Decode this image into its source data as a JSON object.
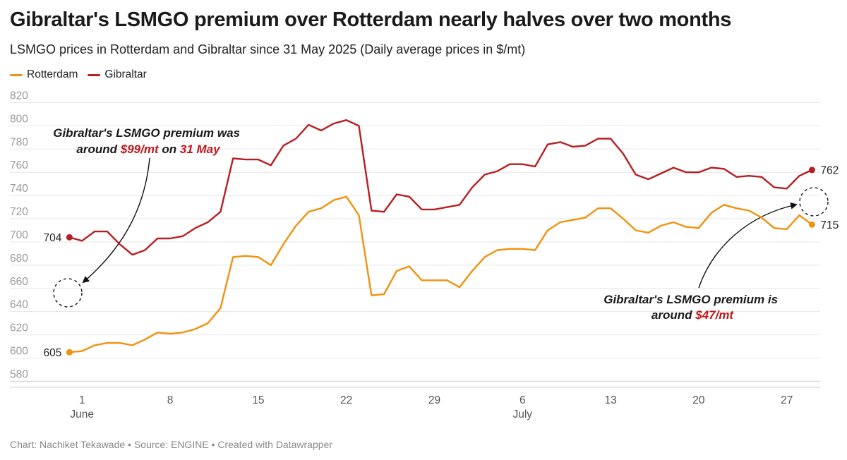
{
  "title": "Gibraltar's LSMGO premium over Rotterdam nearly halves over two months",
  "subtitle": "LSMGO prices in Rotterdam and Gibraltar since 31 May 2025 (Daily average prices in $/mt)",
  "footer": "Chart: Nachiket Tekawade • Source: ENGINE • Created with Datawrapper",
  "legend": [
    {
      "name": "Rotterdam",
      "color": "#f0920f"
    },
    {
      "name": "Gibraltar",
      "color": "#b81d21"
    }
  ],
  "annotations": [
    {
      "lines": [
        [
          {
            "t": "Gibraltar's LSMGO premium was",
            "red": false
          }
        ],
        [
          {
            "t": "around ",
            "red": false
          },
          {
            "t": "$99/mt",
            "red": true
          },
          {
            "t": " on ",
            "red": false
          },
          {
            "t": "31 May",
            "red": true
          }
        ]
      ]
    },
    {
      "lines": [
        [
          {
            "t": "Gibraltar's LSMGO premium is",
            "red": false
          }
        ],
        [
          {
            "t": "around ",
            "red": false
          },
          {
            "t": "$47/mt",
            "red": true
          }
        ]
      ]
    }
  ],
  "chart_data": {
    "type": "line",
    "x_start_date": "2025-05-31",
    "x_ticks": [
      {
        "day": 1,
        "label": "1",
        "sublabel": "June"
      },
      {
        "day": 8,
        "label": "8",
        "sublabel": ""
      },
      {
        "day": 15,
        "label": "15",
        "sublabel": ""
      },
      {
        "day": 22,
        "label": "22",
        "sublabel": ""
      },
      {
        "day": 29,
        "label": "29",
        "sublabel": ""
      },
      {
        "day": 36,
        "label": "6",
        "sublabel": "July"
      },
      {
        "day": 43,
        "label": "13",
        "sublabel": ""
      },
      {
        "day": 50,
        "label": "20",
        "sublabel": ""
      },
      {
        "day": 57,
        "label": "27",
        "sublabel": ""
      }
    ],
    "y_ticks": [
      580,
      600,
      620,
      640,
      660,
      680,
      700,
      720,
      740,
      760,
      780,
      800,
      820
    ],
    "ylim": [
      575,
      822
    ],
    "grid": true,
    "legend_position": "top-left",
    "series": [
      {
        "name": "Rotterdam",
        "color": "#f0920f",
        "start_label": "605",
        "end_label": "715",
        "values": [
          605,
          606,
          611,
          613,
          613,
          611,
          616,
          622,
          621,
          622,
          625,
          630,
          643,
          687,
          688,
          687,
          680,
          698,
          714,
          726,
          729,
          736,
          739,
          723,
          654,
          655,
          675,
          679,
          667,
          667,
          667,
          661,
          675,
          687,
          693,
          694,
          694,
          693,
          710,
          717,
          719,
          721,
          729,
          729,
          720,
          710,
          708,
          714,
          717,
          713,
          712,
          725,
          732,
          729,
          727,
          721,
          712,
          711,
          723,
          715
        ]
      },
      {
        "name": "Gibraltar",
        "color": "#b81d21",
        "start_label": "704",
        "end_label": "762",
        "values": [
          704,
          701,
          709,
          709,
          698,
          689,
          693,
          703,
          703,
          705,
          712,
          717,
          726,
          772,
          771,
          771,
          766,
          783,
          789,
          801,
          796,
          802,
          805,
          800,
          727,
          726,
          741,
          739,
          728,
          728,
          730,
          732,
          747,
          758,
          761,
          767,
          767,
          765,
          784,
          786,
          782,
          783,
          789,
          789,
          776,
          758,
          754,
          759,
          764,
          760,
          760,
          764,
          763,
          756,
          757,
          756,
          747,
          746,
          757,
          762
        ]
      }
    ]
  }
}
